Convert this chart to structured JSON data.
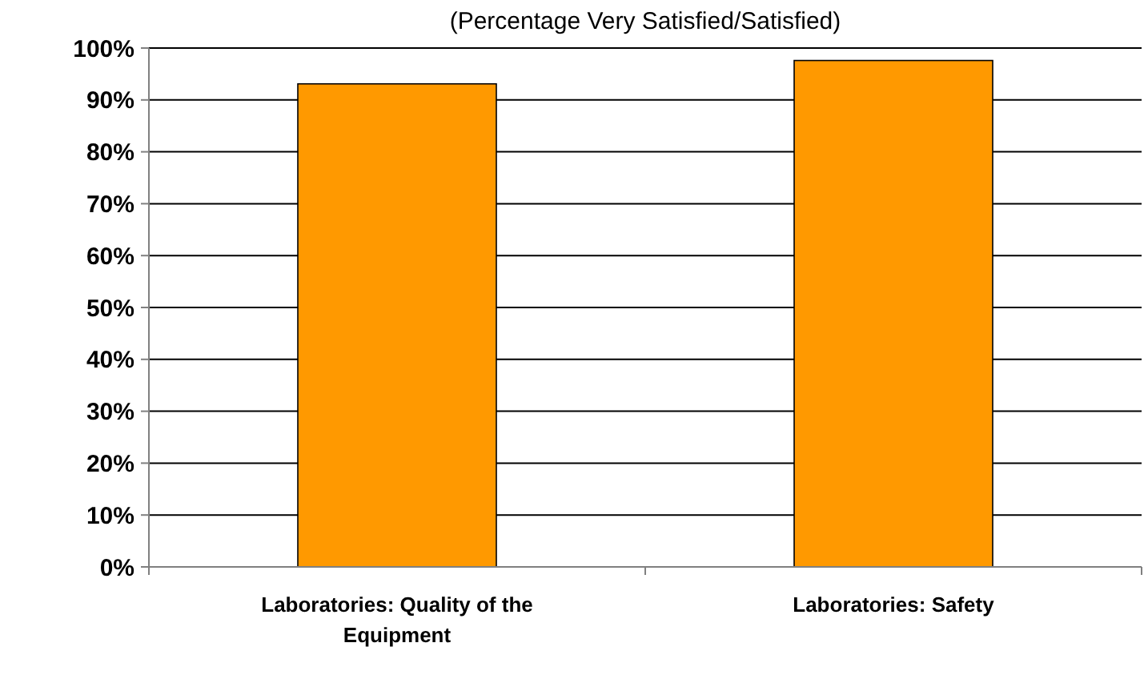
{
  "chart_data": {
    "type": "bar",
    "subtitle": "(Percentage Very Satisfied/Satisfied)",
    "categories": [
      "Laboratories: Quality of the Equipment",
      "Laboratories: Safety"
    ],
    "values": [
      93.1,
      97.6
    ],
    "color": "#ff9900",
    "ylim": [
      0,
      100
    ],
    "yticks": [
      {
        "value": 0,
        "label": "0%"
      },
      {
        "value": 10,
        "label": "10%"
      },
      {
        "value": 20,
        "label": "20%"
      },
      {
        "value": 30,
        "label": "30%"
      },
      {
        "value": 40,
        "label": "40%"
      },
      {
        "value": 50,
        "label": "50%"
      },
      {
        "value": 60,
        "label": "60%"
      },
      {
        "value": 70,
        "label": "70%"
      },
      {
        "value": 80,
        "label": "80%"
      },
      {
        "value": 90,
        "label": "90%"
      },
      {
        "value": 100,
        "label": "100%"
      }
    ],
    "grid": "y"
  }
}
